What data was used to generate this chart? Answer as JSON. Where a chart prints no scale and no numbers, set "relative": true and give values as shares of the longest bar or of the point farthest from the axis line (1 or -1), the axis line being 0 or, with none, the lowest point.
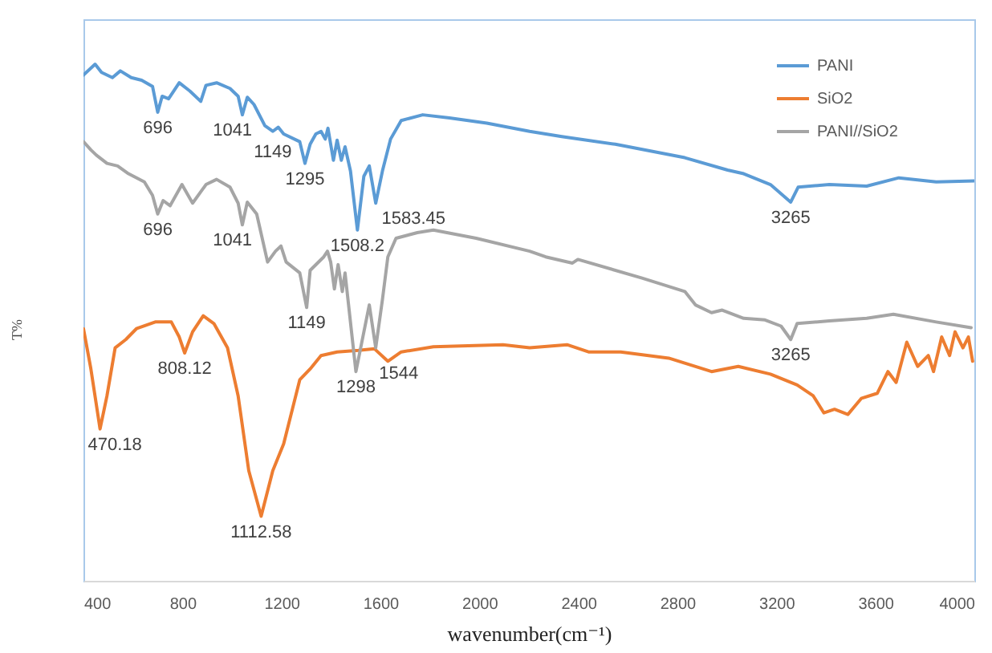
{
  "chart_data": {
    "type": "line",
    "relative": true,
    "xlabel": "wavenumber(cm⁻¹)",
    "ylabel": "T%",
    "xlim": [
      400,
      4000
    ],
    "xticks": [
      400,
      800,
      1200,
      1600,
      2000,
      2400,
      2800,
      3200,
      3600,
      4000
    ],
    "legend": "top right",
    "line_style": "solid",
    "series": [
      {
        "name": "PANI",
        "color": "#5b9bd5",
        "x": [
          400,
          447,
          473,
          517,
          549,
          593,
          635,
          679,
          700,
          718,
          744,
          787,
          830,
          874,
          895,
          938,
          992,
          1025,
          1042,
          1062,
          1089,
          1133,
          1165,
          1187,
          1209,
          1274,
          1295,
          1316,
          1339,
          1360,
          1377,
          1388,
          1410,
          1425,
          1442,
          1457,
          1479,
          1507,
          1533,
          1555,
          1581,
          1608,
          1641,
          1684,
          1771,
          1879,
          2030,
          2203,
          2333,
          2549,
          2830,
          3003,
          3068,
          3176,
          3258,
          3288,
          3414,
          3565,
          3695,
          3846,
          4000
        ],
        "values": [
          0.979,
          1.0,
          0.984,
          0.974,
          0.987,
          0.974,
          0.969,
          0.957,
          0.907,
          0.938,
          0.933,
          0.964,
          0.948,
          0.928,
          0.959,
          0.964,
          0.953,
          0.938,
          0.902,
          0.936,
          0.922,
          0.881,
          0.87,
          0.878,
          0.865,
          0.85,
          0.808,
          0.845,
          0.865,
          0.87,
          0.855,
          0.876,
          0.814,
          0.853,
          0.814,
          0.84,
          0.793,
          0.679,
          0.783,
          0.803,
          0.731,
          0.793,
          0.855,
          0.891,
          0.902,
          0.896,
          0.886,
          0.87,
          0.86,
          0.845,
          0.819,
          0.795,
          0.788,
          0.767,
          0.733,
          0.762,
          0.767,
          0.764,
          0.78,
          0.772,
          0.774
        ]
      },
      {
        "name": "SiO2",
        "color": "#ed7d31",
        "x": [
          400,
          430,
          467,
          495,
          528,
          571,
          614,
          690,
          755,
          787,
          809,
          841,
          884,
          927,
          982,
          1025,
          1068,
          1118,
          1165,
          1209,
          1274,
          1316,
          1360,
          1425,
          1511,
          1576,
          1630,
          1684,
          1814,
          2095,
          2203,
          2354,
          2441,
          2571,
          2765,
          2938,
          3046,
          3176,
          3284,
          3349,
          3392,
          3435,
          3489,
          3543,
          3608,
          3651,
          3684,
          3727,
          3771,
          3814,
          3835,
          3868,
          3900,
          3922,
          3954,
          3976,
          3993
        ],
        "values": [
          0.488,
          0.41,
          0.294,
          0.358,
          0.451,
          0.467,
          0.488,
          0.501,
          0.501,
          0.472,
          0.441,
          0.482,
          0.513,
          0.498,
          0.451,
          0.358,
          0.213,
          0.125,
          0.213,
          0.265,
          0.389,
          0.41,
          0.436,
          0.443,
          0.446,
          0.449,
          0.425,
          0.443,
          0.453,
          0.457,
          0.451,
          0.457,
          0.443,
          0.443,
          0.431,
          0.405,
          0.415,
          0.4,
          0.379,
          0.358,
          0.325,
          0.332,
          0.322,
          0.353,
          0.363,
          0.405,
          0.384,
          0.462,
          0.415,
          0.436,
          0.405,
          0.472,
          0.436,
          0.482,
          0.451,
          0.472,
          0.425
        ]
      },
      {
        "name": "PANI//SiO2",
        "color": "#a5a5a5",
        "x": [
          400,
          430,
          452,
          495,
          538,
          582,
          646,
          679,
          700,
          722,
          750,
          798,
          841,
          895,
          938,
          992,
          1025,
          1042,
          1062,
          1100,
          1144,
          1176,
          1198,
          1219,
          1274,
          1302,
          1316,
          1371,
          1386,
          1399,
          1414,
          1429,
          1446,
          1457,
          1501,
          1555,
          1581,
          1608,
          1630,
          1663,
          1749,
          1814,
          1987,
          2203,
          2268,
          2376,
          2398,
          2657,
          2830,
          2873,
          2938,
          2981,
          3068,
          3154,
          3219,
          3258,
          3284,
          3414,
          3565,
          3673,
          3846,
          3987
        ],
        "values": [
          0.85,
          0.834,
          0.824,
          0.808,
          0.803,
          0.788,
          0.772,
          0.746,
          0.71,
          0.736,
          0.726,
          0.767,
          0.731,
          0.767,
          0.777,
          0.762,
          0.731,
          0.689,
          0.733,
          0.71,
          0.617,
          0.638,
          0.648,
          0.617,
          0.596,
          0.529,
          0.601,
          0.627,
          0.638,
          0.617,
          0.565,
          0.612,
          0.56,
          0.596,
          0.405,
          0.534,
          0.451,
          0.544,
          0.627,
          0.663,
          0.674,
          0.679,
          0.663,
          0.638,
          0.627,
          0.615,
          0.622,
          0.586,
          0.56,
          0.534,
          0.519,
          0.524,
          0.508,
          0.505,
          0.493,
          0.467,
          0.498,
          0.503,
          0.508,
          0.516,
          0.501,
          0.49
        ]
      }
    ],
    "annotations": [
      {
        "text": "696",
        "x": 700,
        "y": 0.907
      },
      {
        "text": "1041",
        "x": 1042,
        "y": 0.902
      },
      {
        "text": "1149",
        "x": 1165,
        "y": 0.87
      },
      {
        "text": "1295",
        "x": 1295,
        "y": 0.808
      },
      {
        "text": "1508.2",
        "x": 1507,
        "y": 0.679
      },
      {
        "text": "1583.45",
        "x": 1581,
        "y": 0.731
      },
      {
        "text": "3265",
        "x": 3258,
        "y": 0.733
      },
      {
        "text": "696",
        "x": 700,
        "y": 0.71
      },
      {
        "text": "1041",
        "x": 1042,
        "y": 0.689
      },
      {
        "text": "1149",
        "x": 1302,
        "y": 0.529
      },
      {
        "text": "1298",
        "x": 1501,
        "y": 0.405
      },
      {
        "text": "1544",
        "x": 1581,
        "y": 0.451
      },
      {
        "text": "3265",
        "x": 3258,
        "y": 0.467
      },
      {
        "text": "470.18",
        "x": 467,
        "y": 0.294
      },
      {
        "text": "808.12",
        "x": 809,
        "y": 0.441
      },
      {
        "text": "1112.58",
        "x": 1118,
        "y": 0.125
      }
    ]
  }
}
